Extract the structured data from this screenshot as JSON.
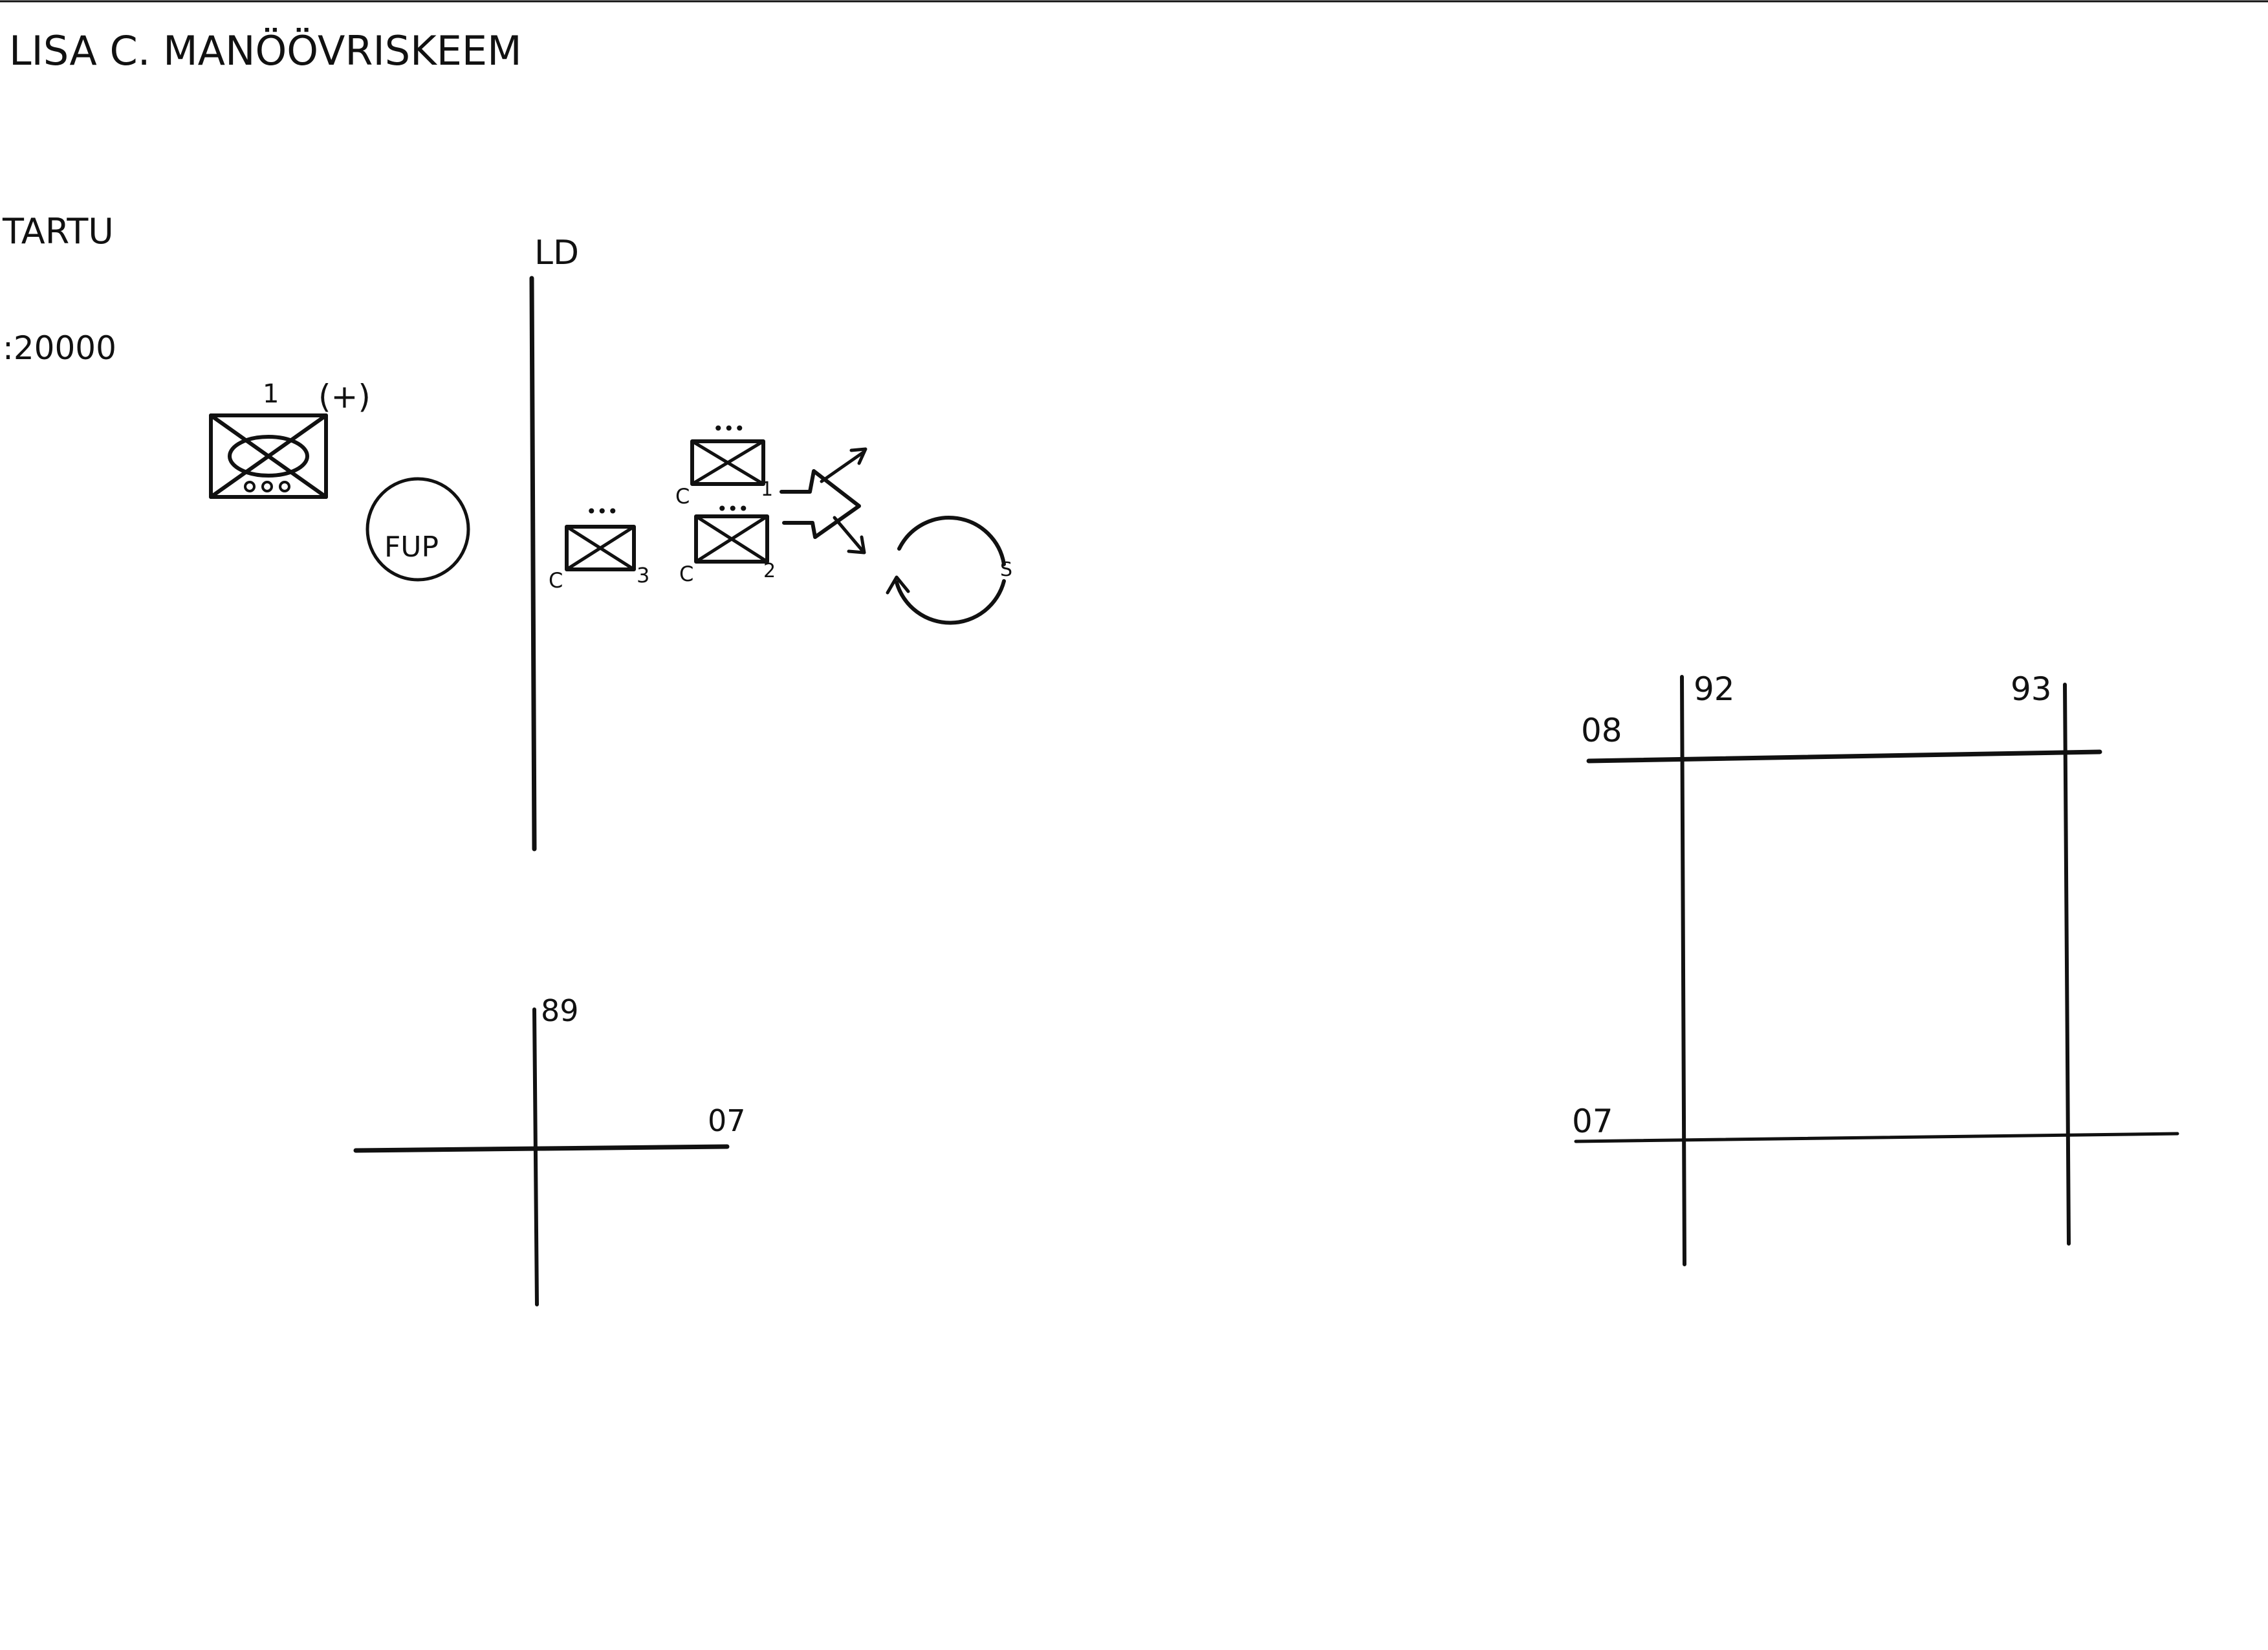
{
  "title": "LISA C. MANÖÖVRISKEEM",
  "map_name": "TARTU",
  "scale": ":20000",
  "colors": {
    "ink": "#111111",
    "paper": "#ffffff"
  },
  "phase_line": {
    "label": "LD"
  },
  "symbols": {
    "battalion": {
      "designation": "1",
      "reinforced": "(+)",
      "icon": "armored-infantry-battalion-icon"
    },
    "fup": {
      "label": "FUP"
    },
    "company_left": {
      "echelon": "•••",
      "unit_letter": "C",
      "unit_number": "3",
      "icon": "infantry-company-icon"
    },
    "company_top": {
      "echelon": "•••",
      "unit_letter": "C",
      "unit_number": "1",
      "icon": "infantry-company-icon"
    },
    "company_bottom": {
      "echelon": "•••",
      "unit_letter": "C",
      "unit_number": "2",
      "icon": "infantry-company-icon"
    },
    "maneuver_arrow": {
      "icon": "attack-arrow-icon"
    },
    "cycle": {
      "label": "S",
      "icon": "circular-arrow-icon"
    }
  },
  "grid_small": {
    "easting": "89",
    "northing": "07"
  },
  "grid_large": {
    "easting_left": "92",
    "easting_right": "93",
    "northing_top": "08",
    "northing_bottom": "07"
  }
}
